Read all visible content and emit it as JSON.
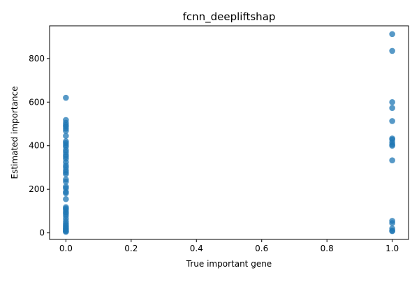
{
  "colors": {
    "point": "#1f77b4",
    "axis": "#000000",
    "background": "#ffffff"
  },
  "chart_data": {
    "type": "scatter",
    "title": "fcnn_deepliftshap",
    "xlabel": "True important gene",
    "ylabel": "Estimated importance",
    "xlim": [
      -0.05,
      1.05
    ],
    "ylim": [
      -30,
      950
    ],
    "xticks": [
      0.0,
      0.2,
      0.4,
      0.6,
      0.8,
      1.0
    ],
    "xtick_labels": [
      "0.0",
      "0.2",
      "0.4",
      "0.6",
      "0.8",
      "1.0"
    ],
    "yticks": [
      0,
      200,
      400,
      600,
      800
    ],
    "ytick_labels": [
      "0",
      "200",
      "400",
      "600",
      "800"
    ],
    "grid": false,
    "marker_alpha": 0.75,
    "series": [
      {
        "name": "genes",
        "x": [
          0,
          0,
          0,
          0,
          0,
          0,
          0,
          0,
          0,
          0,
          0,
          0,
          0,
          0,
          0,
          0,
          0,
          0,
          0,
          0,
          0,
          0,
          0,
          0,
          0,
          0,
          0,
          0,
          0,
          0,
          0,
          0,
          0,
          0,
          0,
          0,
          0,
          0,
          0,
          0,
          0,
          0,
          0,
          0,
          0,
          0,
          1,
          1,
          1,
          1,
          1,
          1,
          1,
          1,
          1,
          1,
          1,
          1,
          1,
          1,
          1,
          1
        ],
        "y": [
          620,
          518,
          505,
          495,
          488,
          478,
          468,
          445,
          412,
          403,
          395,
          380,
          370,
          358,
          340,
          325,
          310,
          300,
          287,
          278,
          245,
          212,
          205,
          188,
          182,
          155,
          118,
          112,
          105,
          95,
          88,
          78,
          52,
          42,
          35,
          28,
          22,
          18,
          12,
          8,
          5,
          65,
          270,
          420,
          350,
          235,
          912,
          835,
          600,
          573,
          513,
          433,
          428,
          415,
          405,
          400,
          333,
          55,
          45,
          20,
          10,
          8
        ]
      }
    ]
  }
}
